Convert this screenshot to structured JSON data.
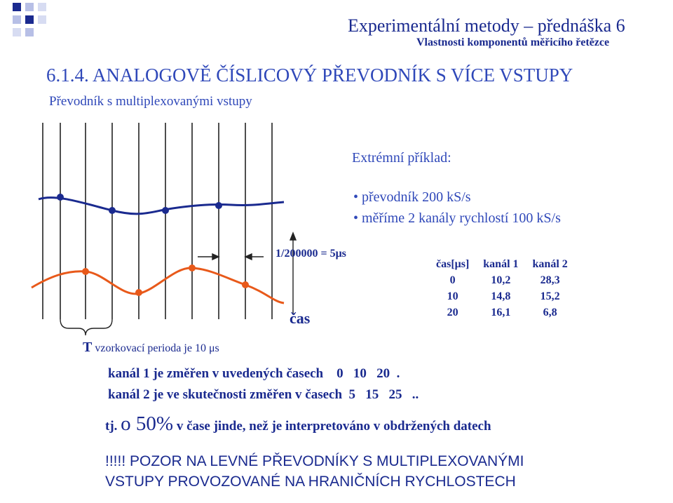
{
  "header": {
    "title": "Experimentální metody – přednáška 6",
    "subtitle": "Vlastnosti komponentů měřicího řetězce"
  },
  "section": {
    "title": "6.1.4. ANALOGOVĚ ČÍSLICOVÝ PŘEVODNÍK S VÍCE VSTUPY",
    "subtitle": "Převodník s multiplexovanými vstupy"
  },
  "example": {
    "title": "Extrémní příklad:",
    "bullets": [
      "• převodník 200 kS/s",
      "• měříme 2 kanály rychlostí 100 kS/s"
    ]
  },
  "diagram": {
    "period_label": "1/200000 = 5μs",
    "time_axis_label": "čas",
    "sampling_label_t": "T",
    "sampling_label_text": " vzorkovací perioda je 10 μs",
    "colors": {
      "channel1": "#1a2a8f",
      "channel2": "#e8591a",
      "grid": "#222222"
    }
  },
  "table": {
    "header": [
      "čas[μs]",
      "kanál 1",
      "kanál 2"
    ],
    "rows": [
      [
        "0",
        "10,2",
        "28,3"
      ],
      [
        "10",
        "14,8",
        "15,2"
      ],
      [
        "20",
        "16,1",
        "6,8"
      ]
    ]
  },
  "notes": {
    "line1": "kanál 1 je změřen v uvedených časech    0   10   20  .",
    "line2": "kanál 2 je ve skutečnosti změřen v časech  5   15   25   ..",
    "line3_prefix": "tj. ",
    "line3_big": "o 50%",
    "line3_suffix": " v čase jinde, než je interpretováno v obdržených datech"
  },
  "warning": {
    "line1": "!!!!! POZOR NA LEVNÉ PŘEVODNÍKY S MULTIPLEXOVANÝMI",
    "line2": "VSTUPY PROVOZOVANÉ NA HRANIČNÍCH RYCHLOSTECH"
  }
}
